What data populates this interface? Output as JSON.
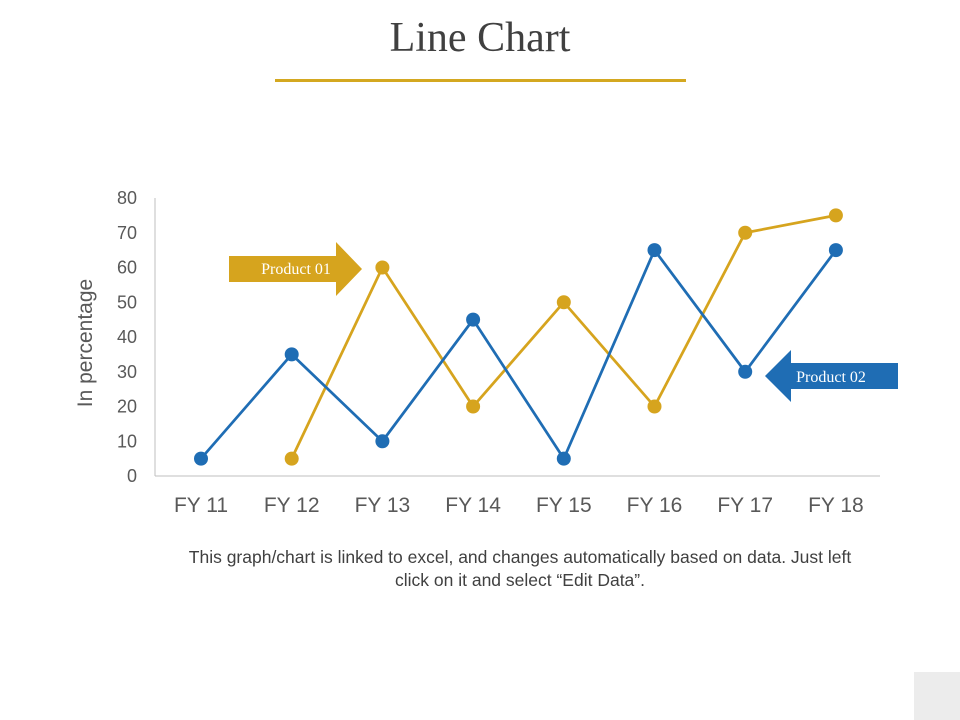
{
  "title": "Line Chart",
  "footnote": "This graph/chart is linked to excel, and changes automatically based on data. Just left click on it and select “Edit Data”.",
  "colors": {
    "product01": "#d6a41e",
    "product02": "#1f6db4",
    "rule": "#d4a820"
  },
  "chart_data": {
    "type": "line",
    "title": "Line Chart",
    "xlabel": "",
    "ylabel": "In percentage",
    "categories": [
      "FY 11",
      "FY 12",
      "FY 13",
      "FY 14",
      "FY 15",
      "FY 16",
      "FY 17",
      "FY 18"
    ],
    "ylim": [
      0,
      80
    ],
    "yticks": [
      0,
      10,
      20,
      30,
      40,
      50,
      60,
      70,
      80
    ],
    "grid": false,
    "series": [
      {
        "name": "Product 01",
        "color": "#d6a41e",
        "values": [
          null,
          5,
          60,
          20,
          50,
          20,
          70,
          75
        ]
      },
      {
        "name": "Product 02",
        "color": "#1f6db4",
        "values": [
          5,
          35,
          10,
          45,
          5,
          65,
          30,
          65
        ]
      }
    ]
  }
}
